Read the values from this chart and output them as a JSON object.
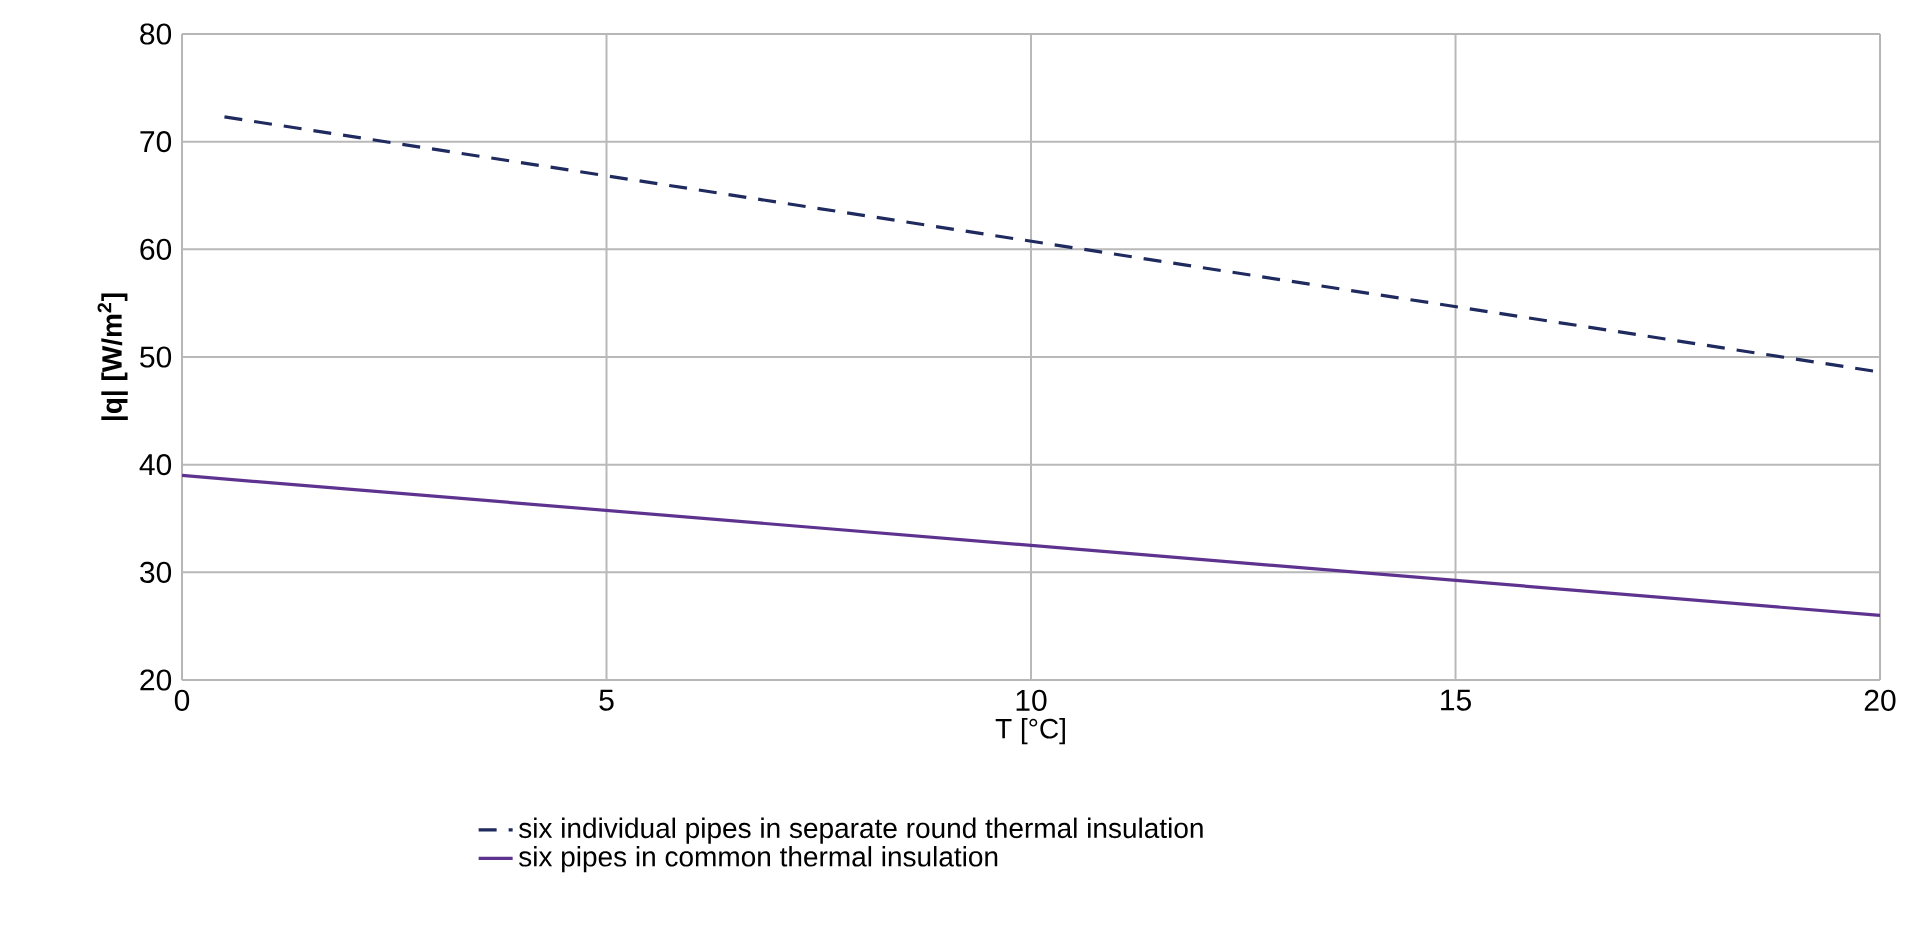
{
  "chart_data": {
    "type": "line",
    "xlabel": "T [°C]",
    "ylabel": "|q| [W/m$^{2}$]",
    "xlim": [
      0,
      20
    ],
    "ylim": [
      20,
      80
    ],
    "xticks": [
      0,
      5,
      10,
      15,
      20
    ],
    "yticks": [
      20,
      30,
      40,
      50,
      60,
      70,
      80
    ],
    "grid": true,
    "legend": "bottom",
    "marker": "none",
    "series": [
      {
        "name": "six individual pipes in separate round thermal insulation",
        "color": "#1f2a5e",
        "line_style": "dashed",
        "x": [
          0.5,
          20
        ],
        "values": [
          72.3,
          48.6
        ]
      },
      {
        "name": "six pipes in common thermal insulation",
        "color": "#5e3390",
        "line_style": "solid",
        "x": [
          0,
          20
        ],
        "values": [
          39,
          26
        ]
      }
    ]
  }
}
